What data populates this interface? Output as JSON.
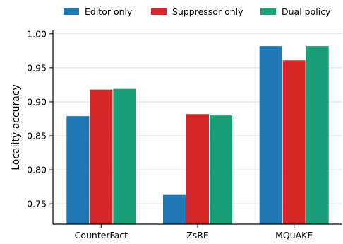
{
  "chart_data": {
    "type": "bar",
    "categories": [
      "CounterFact",
      "ZsRE",
      "MQuAKE"
    ],
    "series": [
      {
        "name": "Editor only",
        "color": "#1f77b4",
        "values": [
          0.879,
          0.763,
          0.982
        ]
      },
      {
        "name": "Suppressor only",
        "color": "#d62728",
        "values": [
          0.918,
          0.882,
          0.961
        ]
      },
      {
        "name": "Dual policy",
        "color": "#1a9e77",
        "values": [
          0.919,
          0.88,
          0.982
        ]
      }
    ],
    "title": "",
    "xlabel": "",
    "ylabel": "Locality accuracy",
    "ylim": [
      0.72,
      1.005
    ],
    "yticks": [
      "0.75",
      "0.80",
      "0.85",
      "0.90",
      "0.95",
      "1.00"
    ],
    "grid": "horizontal",
    "legend_position": "top"
  }
}
